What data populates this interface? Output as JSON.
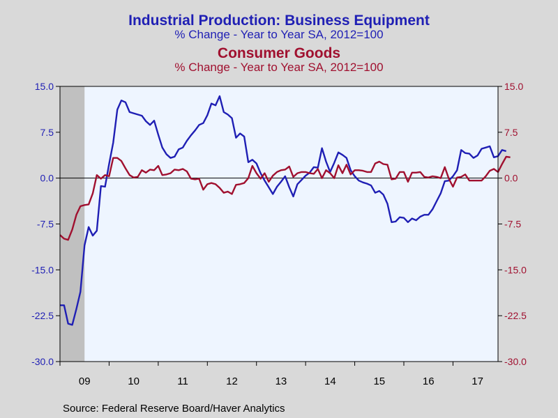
{
  "source": "Source:  Federal Reserve Board/Haver Analytics",
  "colors": {
    "blue": "#1f1fb4",
    "red": "#a0102f",
    "plot_bg": "#eef5ff",
    "frame_bg": "#d9d9d9",
    "recession": "#c0c0c0"
  },
  "chart_data": {
    "type": "line",
    "title": "Industrial Production: Business Equipment",
    "subtitle": "% Change - Year to Year    SA, 2012=100",
    "title2": "Consumer Goods",
    "subtitle2": "% Change - Year to Year    SA, 2012=100",
    "x_labels": [
      "09",
      "10",
      "11",
      "12",
      "13",
      "14",
      "15",
      "16",
      "17"
    ],
    "x_range": [
      2009.0,
      2017.9167
    ],
    "y_left": {
      "lim": [
        -30,
        15
      ],
      "ticks": [
        "15.0",
        "7.5",
        "0.0",
        "-7.5",
        "-15.0",
        "-22.5",
        "-30.0"
      ]
    },
    "y_right": {
      "lim": [
        -30,
        15
      ],
      "ticks": [
        "15.0",
        "7.5",
        "0.0",
        "-7.5",
        "-15.0",
        "-22.5",
        "-30.0"
      ]
    },
    "recession_shading": [
      [
        2009.0,
        2009.5
      ]
    ],
    "zero_line": true,
    "series": [
      {
        "color": "blue",
        "axis": "left",
        "x_start": 2009.0,
        "step": 0.08333,
        "values": [
          -20.8,
          -20.8,
          -23.8,
          -24.0,
          -21.4,
          -18.6,
          -11.0,
          -8.0,
          -9.4,
          -8.6,
          -1.3,
          -1.4,
          2.3,
          5.8,
          11.2,
          12.7,
          12.4,
          10.8,
          10.6,
          10.4,
          10.2,
          9.3,
          8.7,
          9.4,
          7.1,
          5.0,
          3.9,
          3.3,
          3.5,
          4.7,
          5.0,
          6.1,
          7.0,
          7.8,
          8.7,
          9.0,
          10.3,
          12.2,
          11.9,
          13.4,
          10.8,
          10.4,
          9.8,
          6.6,
          7.3,
          6.8,
          2.6,
          3.0,
          2.4,
          0.8,
          -0.4,
          -1.5,
          -2.6,
          -1.4,
          -0.6,
          0.3,
          -1.5,
          -3.0,
          -1.0,
          -0.3,
          0.4,
          0.9,
          1.8,
          1.7,
          4.9,
          2.7,
          1.0,
          2.5,
          4.2,
          3.8,
          3.3,
          1.3,
          0.3,
          -0.4,
          -0.7,
          -0.9,
          -1.2,
          -2.4,
          -2.1,
          -2.7,
          -4.2,
          -7.2,
          -7.1,
          -6.4,
          -6.5,
          -7.2,
          -6.6,
          -6.9,
          -6.3,
          -6.0,
          -6.0,
          -5.1,
          -3.8,
          -2.5,
          -0.5,
          -0.4,
          0.3,
          1.3,
          4.6,
          4.1,
          4.0,
          3.3,
          3.7,
          4.8,
          5.0,
          5.2,
          3.4,
          3.6,
          4.6,
          4.4
        ]
      },
      {
        "color": "red",
        "axis": "left",
        "x_start": 2009.0,
        "step": 0.08333,
        "values": [
          -9.3,
          -9.9,
          -10.1,
          -8.4,
          -6.0,
          -4.6,
          -4.4,
          -4.3,
          -2.5,
          0.5,
          -0.1,
          0.5,
          0.3,
          3.3,
          3.3,
          2.8,
          1.6,
          0.5,
          0.1,
          0.2,
          1.3,
          0.9,
          1.4,
          1.3,
          2.0,
          0.5,
          0.6,
          0.8,
          1.4,
          1.3,
          1.5,
          1.1,
          -0.1,
          -0.2,
          -0.1,
          -1.9,
          -1.0,
          -0.8,
          -1.0,
          -1.6,
          -2.4,
          -2.2,
          -2.6,
          -1.1,
          -1.0,
          -0.8,
          0.0,
          2.0,
          0.8,
          -0.1,
          0.8,
          -0.6,
          0.4,
          1.0,
          1.3,
          1.4,
          1.9,
          0.2,
          0.8,
          1.0,
          1.0,
          0.8,
          0.7,
          1.5,
          0.0,
          1.3,
          0.8,
          0.0,
          2.1,
          0.8,
          2.2,
          0.6,
          1.3,
          1.3,
          1.2,
          1.0,
          1.0,
          2.4,
          2.7,
          2.3,
          2.2,
          -0.2,
          -0.1,
          1.0,
          1.0,
          -0.6,
          0.9,
          0.9,
          1.0,
          0.2,
          0.1,
          0.3,
          0.2,
          0.0,
          1.8,
          -0.1,
          -1.4,
          0.1,
          0.2,
          0.6,
          -0.4,
          -0.4,
          -0.4,
          -0.4,
          0.3,
          1.2,
          1.5,
          1.0,
          2.3,
          3.5,
          3.4
        ]
      }
    ]
  }
}
